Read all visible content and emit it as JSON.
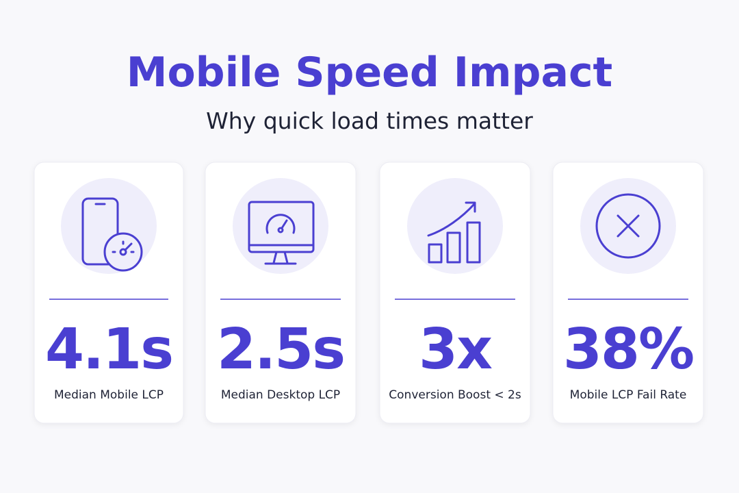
{
  "header": {
    "title": "Mobile Speed Impact",
    "subtitle": "Why quick load times matter"
  },
  "cards": [
    {
      "value": "4.1s",
      "label": "Median Mobile LCP"
    },
    {
      "value": "2.5s",
      "label": "Median Desktop LCP"
    },
    {
      "value": "3x",
      "label": "Conversion Boost < 2s"
    },
    {
      "value": "38%",
      "label": "Mobile LCP Fail Rate"
    }
  ]
}
